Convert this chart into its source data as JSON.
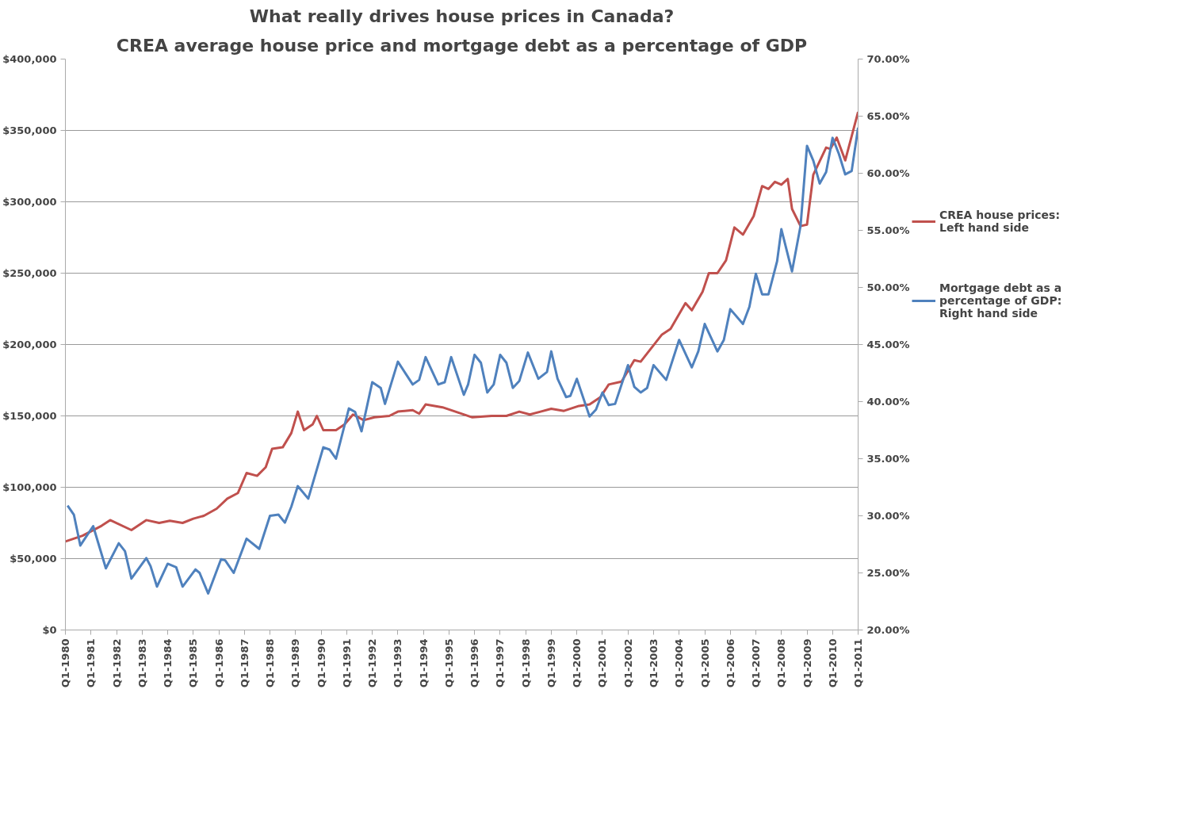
{
  "chart_data": {
    "type": "line",
    "title": "What really drives house prices in Canada?",
    "subtitle": "CREA average house price and mortgage debt as a percentage of GDP",
    "xlim": [
      "1980-01",
      "2011-01"
    ],
    "xticks": [
      {
        "value": "1980-01",
        "label": "Q1-1980"
      },
      {
        "value": "1981-01",
        "label": "Q1-1981"
      },
      {
        "value": "1982-01",
        "label": "Q1-1982"
      },
      {
        "value": "1983-01",
        "label": "Q1-1983"
      },
      {
        "value": "1984-01",
        "label": "Q1-1984"
      },
      {
        "value": "1985-01",
        "label": "Q1-1985"
      },
      {
        "value": "1986-01",
        "label": "Q1-1986"
      },
      {
        "value": "1987-01",
        "label": "Q1-1987"
      },
      {
        "value": "1988-01",
        "label": "Q1-1988"
      },
      {
        "value": "1989-01",
        "label": "Q1-1989"
      },
      {
        "value": "1990-01",
        "label": "Q1-1990"
      },
      {
        "value": "1991-01",
        "label": "Q1-1991"
      },
      {
        "value": "1992-01",
        "label": "Q1-1992"
      },
      {
        "value": "1993-01",
        "label": "Q1-1993"
      },
      {
        "value": "1994-01",
        "label": "Q1-1994"
      },
      {
        "value": "1995-01",
        "label": "Q1-1995"
      },
      {
        "value": "1996-01",
        "label": "Q1-1996"
      },
      {
        "value": "1997-01",
        "label": "Q1-1997"
      },
      {
        "value": "1998-01",
        "label": "Q1-1998"
      },
      {
        "value": "1999-01",
        "label": "Q1-1999"
      },
      {
        "value": "2000-01",
        "label": "Q1-2000"
      },
      {
        "value": "2001-01",
        "label": "Q1-2001"
      },
      {
        "value": "2002-01",
        "label": "Q1-2002"
      },
      {
        "value": "2003-01",
        "label": "Q1-2003"
      },
      {
        "value": "2004-01",
        "label": "Q1-2004"
      },
      {
        "value": "2005-01",
        "label": "Q1-2005"
      },
      {
        "value": "2006-01",
        "label": "Q1-2006"
      },
      {
        "value": "2007-01",
        "label": "Q1-2007"
      },
      {
        "value": "2008-01",
        "label": "Q1-2008"
      },
      {
        "value": "2009-01",
        "label": "Q1-2009"
      },
      {
        "value": "2010-01",
        "label": "Q1-2010"
      },
      {
        "value": "2011-01",
        "label": "Q1-2011"
      }
    ],
    "ylim": [
      0,
      400000
    ],
    "yticks": [
      {
        "value": 0,
        "label": "$0"
      },
      {
        "value": 50000,
        "label": "$50,000"
      },
      {
        "value": 100000,
        "label": "$100,000"
      },
      {
        "value": 150000,
        "label": "$150,000"
      },
      {
        "value": 200000,
        "label": "$200,000"
      },
      {
        "value": 250000,
        "label": "$250,000"
      },
      {
        "value": 300000,
        "label": "$300,000"
      },
      {
        "value": 350000,
        "label": "$350,000"
      },
      {
        "value": 400000,
        "label": "$400,000"
      }
    ],
    "y2lim": [
      20,
      70
    ],
    "y2ticks": [
      {
        "value": 20,
        "label": "20.00%"
      },
      {
        "value": 25,
        "label": "25.00%"
      },
      {
        "value": 30,
        "label": "30.00%"
      },
      {
        "value": 35,
        "label": "35.00%"
      },
      {
        "value": 40,
        "label": "40.00%"
      },
      {
        "value": 45,
        "label": "45.00%"
      },
      {
        "value": 50,
        "label": "50.00%"
      },
      {
        "value": 55,
        "label": "55.00%"
      },
      {
        "value": 60,
        "label": "60.00%"
      },
      {
        "value": 65,
        "label": "65.00%"
      },
      {
        "value": 70,
        "label": "70.00%"
      }
    ],
    "grid": "y",
    "legend": "right",
    "marker": "none",
    "line_style": "solid",
    "series": [
      {
        "name": "CREA house prices:\nLeft hand side",
        "color": "#c0504d",
        "x": [
          "1980-01",
          "1980-09",
          "1981-06",
          "1981-10",
          "1982-08",
          "1983-03",
          "1983-09",
          "1984-02",
          "1984-08",
          "1985-01",
          "1985-06",
          "1985-12",
          "1986-05",
          "1986-10",
          "1987-02",
          "1987-07",
          "1987-11",
          "1988-02",
          "1988-07",
          "1988-11",
          "1989-02",
          "1989-05",
          "1989-09",
          "1989-11",
          "1990-02",
          "1990-08",
          "1990-12",
          "1991-04",
          "1991-09",
          "1992-02",
          "1992-09",
          "1993-01",
          "1993-08",
          "1993-11",
          "1994-02",
          "1994-10",
          "1995-03",
          "1995-12",
          "1996-09",
          "1997-04",
          "1997-10",
          "1998-03",
          "1998-08",
          "1999-01",
          "1999-07",
          "2000-02",
          "2000-07",
          "2000-12",
          "2001-04",
          "2001-10",
          "2002-04",
          "2002-07",
          "2003-05",
          "2003-09",
          "2004-04",
          "2004-07",
          "2004-12",
          "2005-03",
          "2005-07",
          "2005-11",
          "2006-03",
          "2006-07",
          "2006-12",
          "2007-04",
          "2007-07",
          "2007-10",
          "2008-01",
          "2008-04",
          "2008-06",
          "2008-10",
          "2009-01",
          "2009-04",
          "2009-10",
          "2009-12",
          "2010-03",
          "2010-07",
          "2011-01"
        ],
        "values": [
          62000,
          66000,
          73000,
          77000,
          70000,
          77000,
          75000,
          76500,
          75000,
          78000,
          80000,
          85000,
          92000,
          96000,
          110000,
          108000,
          114000,
          127000,
          128000,
          138000,
          153000,
          140000,
          144000,
          150000,
          140000,
          140000,
          144000,
          151000,
          147000,
          149000,
          150000,
          153000,
          154000,
          151500,
          158000,
          156000,
          153500,
          149000,
          150000,
          150000,
          153000,
          151000,
          153000,
          155000,
          153500,
          157000,
          158000,
          163000,
          172000,
          174000,
          189000,
          188000,
          207000,
          211000,
          229000,
          224000,
          237000,
          250000,
          250000,
          259000,
          282000,
          277000,
          290000,
          311000,
          309000,
          314000,
          312000,
          316000,
          295000,
          283000,
          284000,
          319000,
          338000,
          337000,
          345000,
          329000,
          363000
        ]
      },
      {
        "name": "Mortgage debt as a\npercentage of GDP:\nRight hand side",
        "color": "#4f81bd",
        "axis": "y2",
        "x": [
          "1980-02",
          "1980-05",
          "1980-08",
          "1981-02",
          "1981-08",
          "1982-02",
          "1982-05",
          "1982-08",
          "1983-03",
          "1983-05",
          "1983-08",
          "1984-01",
          "1984-05",
          "1984-08",
          "1985-02",
          "1985-04",
          "1985-08",
          "1986-02",
          "1986-04",
          "1986-08",
          "1987-02",
          "1987-08",
          "1988-01",
          "1988-05",
          "1988-08",
          "1988-11",
          "1989-02",
          "1989-07",
          "1990-02",
          "1990-05",
          "1990-08",
          "1991-02",
          "1991-05",
          "1991-08",
          "1992-01",
          "1992-05",
          "1992-07",
          "1993-01",
          "1993-08",
          "1993-11",
          "1994-02",
          "1994-08",
          "1994-11",
          "1995-02",
          "1995-08",
          "1995-10",
          "1996-01",
          "1996-04",
          "1996-07",
          "1996-10",
          "1997-01",
          "1997-04",
          "1997-07",
          "1997-10",
          "1998-02",
          "1998-07",
          "1998-11",
          "1999-01",
          "1999-04",
          "1999-08",
          "1999-10",
          "2000-01",
          "2000-07",
          "2000-10",
          "2001-01",
          "2001-04",
          "2001-07",
          "2002-01",
          "2002-04",
          "2002-07",
          "2002-10",
          "2003-01",
          "2003-07",
          "2004-01",
          "2004-07",
          "2004-10",
          "2005-01",
          "2005-07",
          "2005-10",
          "2006-01",
          "2006-07",
          "2006-10",
          "2007-01",
          "2007-04",
          "2007-07",
          "2007-11",
          "2008-01",
          "2008-06",
          "2008-10",
          "2009-01",
          "2009-04",
          "2009-07",
          "2009-10",
          "2010-01",
          "2010-04",
          "2010-07",
          "2010-10",
          "2011-01"
        ],
        "values": [
          30.9,
          30.1,
          27.4,
          29.1,
          25.4,
          27.6,
          26.9,
          24.5,
          26.3,
          25.6,
          23.8,
          25.8,
          25.5,
          23.8,
          25.3,
          25.0,
          23.2,
          26.2,
          26.1,
          25.0,
          28.0,
          27.1,
          30.0,
          30.1,
          29.4,
          30.8,
          32.6,
          31.5,
          36.0,
          35.8,
          35.0,
          39.4,
          39.1,
          37.4,
          41.7,
          41.2,
          39.8,
          43.5,
          41.5,
          41.9,
          43.9,
          41.5,
          41.7,
          43.9,
          40.6,
          41.5,
          44.1,
          43.4,
          40.8,
          41.5,
          44.1,
          43.4,
          41.2,
          41.8,
          44.3,
          42.0,
          42.6,
          44.4,
          42.0,
          40.4,
          40.5,
          42.0,
          38.7,
          39.3,
          40.8,
          39.7,
          39.8,
          43.2,
          41.3,
          40.8,
          41.2,
          43.2,
          41.9,
          45.4,
          43.0,
          44.4,
          46.8,
          44.4,
          45.4,
          48.1,
          46.8,
          48.3,
          51.2,
          49.4,
          49.4,
          52.3,
          55.1,
          51.4,
          55.4,
          62.4,
          61.1,
          59.1,
          60.1,
          63.1,
          61.7,
          59.9,
          60.2,
          64.0
        ]
      }
    ]
  }
}
